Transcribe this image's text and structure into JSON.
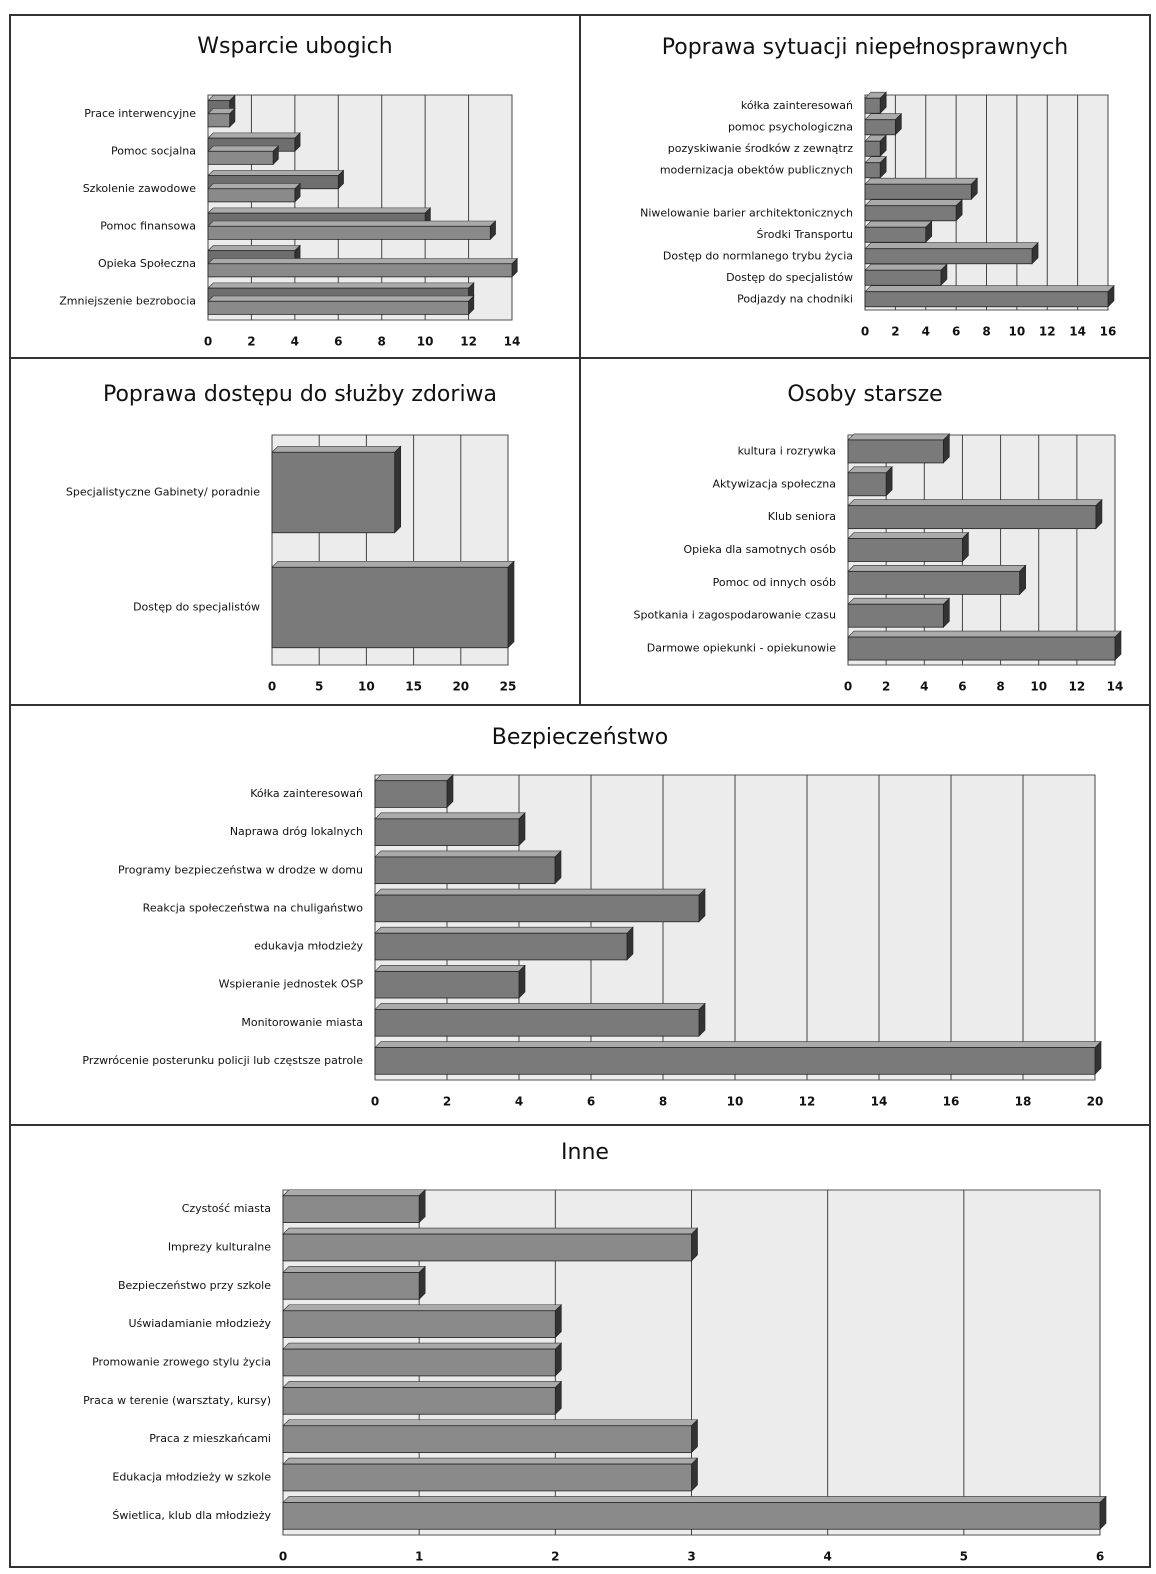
{
  "chart_data": [
    {
      "type": "bar",
      "title": "Wsparcie ubogich",
      "categories": [
        "Prace interwencyjne",
        "Pomoc socjalna",
        "Szkolenie zawodowe",
        "Pomoc finansowa",
        "Opieka Społeczna",
        "Zmniejszenie bezrobocia"
      ],
      "series": [
        {
          "color": "#6e6e6e",
          "values": [
            1,
            4,
            6,
            10,
            4,
            12
          ]
        },
        {
          "color": "#8a8a8a",
          "values": [
            1,
            3,
            4,
            13,
            14,
            12
          ]
        }
      ],
      "xlim": [
        0,
        14
      ],
      "xticks": [
        0,
        2,
        4,
        6,
        8,
        10,
        12,
        14
      ],
      "grid": true
    },
    {
      "type": "bar",
      "title": "Poprawa sytuacji niepełnosprawnych",
      "categories": [
        "kółka zainteresowań",
        "pomoc psychologiczna",
        "pozyskiwanie środków z zewnątrz",
        "modernizacja obektów publicznych",
        null,
        "Niwelowanie barier architektonicznych",
        "Środki Transportu",
        "Dostęp do normlanego trybu życia",
        "Dostęp do specjalistów",
        "Podjazdy na chodniki"
      ],
      "values": [
        1,
        2,
        1,
        1,
        7,
        6,
        4,
        11,
        5,
        16
      ],
      "color": "#7a7a7a",
      "xlim": [
        0,
        16
      ],
      "xticks": [
        0,
        2,
        4,
        6,
        8,
        10,
        12,
        14,
        16
      ],
      "grid": true
    },
    {
      "type": "bar",
      "title": "Poprawa dostępu do służby zdoriwa",
      "categories": [
        "Specjalistyczne Gabinety/ poradnie",
        "Dostęp do specjalistów"
      ],
      "values": [
        13,
        25
      ],
      "color": "#7a7a7a",
      "xlim": [
        0,
        25
      ],
      "xticks": [
        0,
        5,
        10,
        15,
        20,
        25
      ],
      "grid": true
    },
    {
      "type": "bar",
      "title": "Osoby starsze",
      "categories": [
        "kultura i rozrywka",
        "Aktywizacja społeczna",
        "Klub seniora",
        "Opieka dla samotnych osób",
        "Pomoc od innych osób",
        "Spotkania i zagospodarowanie czasu",
        "Darmowe opiekunki - opiekunowie"
      ],
      "values": [
        5,
        2,
        13,
        6,
        9,
        5,
        14
      ],
      "color": "#7a7a7a",
      "xlim": [
        0,
        14
      ],
      "xticks": [
        0,
        2,
        4,
        6,
        8,
        10,
        12,
        14
      ],
      "grid": true
    },
    {
      "type": "bar",
      "title": "Bezpieczeństwo",
      "categories": [
        "Kółka zainteresowań",
        "Naprawa dróg lokalnych",
        "Programy bezpieczeństwa w drodze w domu",
        "Reakcja społeczeństwa na chuligaństwo",
        "edukavja młodzieży",
        "Wspieranie jednostek OSP",
        "Monitorowanie miasta",
        "Przwrócenie posterunku policji lub częstsze patrole"
      ],
      "values": [
        2,
        4,
        5,
        9,
        7,
        4,
        9,
        20
      ],
      "color": "#7a7a7a",
      "xlim": [
        0,
        20
      ],
      "xticks": [
        0,
        2,
        4,
        6,
        8,
        10,
        12,
        14,
        16,
        18,
        20
      ],
      "grid": true
    },
    {
      "type": "bar",
      "title": "Inne",
      "categories": [
        "Czystość miasta",
        "Imprezy kulturalne",
        "Bezpieczeństwo przy szkole",
        "Uświadamianie młodzieży",
        "Promowanie zrowego stylu życia",
        "Praca w terenie (warsztaty, kursy)",
        "Praca z mieszkańcami",
        "Edukacja młodzieży w szkole",
        "Świetlica, klub dla młodzieży"
      ],
      "values": [
        1,
        3,
        1,
        2,
        2,
        2,
        3,
        3,
        6
      ],
      "color": "#8a8a8a",
      "xlim": [
        0,
        6
      ],
      "xticks": [
        0,
        1,
        2,
        3,
        4,
        5,
        6
      ],
      "grid": true
    }
  ]
}
